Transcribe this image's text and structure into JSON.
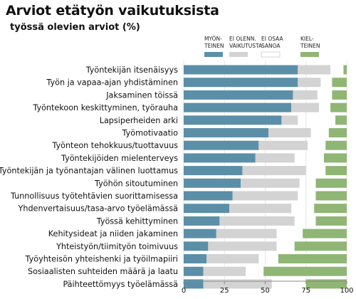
{
  "chart_data": {
    "type": "bar",
    "stacked": true,
    "orientation": "horizontal",
    "title": "Arviot etätyön vaikutuksista",
    "subtitle": "työssä olevien arviot (%)",
    "xlim": [
      0,
      100
    ],
    "xticks": [
      "0",
      "25",
      "50",
      "75",
      "100"
    ],
    "grid": true,
    "legend_position": "top-right",
    "categories": [
      "Työntekijän itsenäisyys",
      "Työn ja vapaa-ajan yhdistäminen",
      "Jaksaminen töissä",
      "Työntekoon keskittyminen, työrauha",
      "Lapsiperheiden arki",
      "Työmotivaatio",
      "Työnteon tehokkuus/tuottavuus",
      "Työntekijöiden mielenterveys",
      "Työntekijän ja työnantajan välinen luottamus",
      "Työhön sitoutuminen",
      "Tunnollisuus työtehtävien suorittamisessa",
      "Yhdenvertaisuus/tasa-arvo työelämässä",
      "Työssä kehittyminen",
      "Kehitysideat ja niiden jakaminen",
      "Yhteistyön/tiimityön toimivuus",
      "Työyhteisön yhteishenki ja työilmapiiri",
      "Sosiaalisten suhteiden määrä ja laatu",
      "Päihteettömyys työelämässä"
    ],
    "series": [
      {
        "name": "MYÖN-TEINEN",
        "color": "#5b8fa8",
        "values": [
          70,
          70,
          67,
          66,
          60,
          52,
          46,
          44,
          36,
          35,
          30,
          28,
          22,
          20,
          15,
          14,
          12,
          12
        ]
      },
      {
        "name": "EI OLENN. VAIKUTUSTA",
        "color": "#d3d3d3",
        "values": [
          20,
          14,
          15,
          17,
          10,
          26,
          30,
          24,
          39,
          36,
          40,
          38,
          46,
          37,
          42,
          32,
          26,
          42
        ]
      },
      {
        "name": "EI OSAA SANOA",
        "color": "#ffffff",
        "values": [
          8,
          7,
          9,
          7,
          23,
          11,
          11,
          18,
          12,
          10,
          11,
          14,
          13,
          16,
          11,
          12,
          11,
          21
        ]
      },
      {
        "name": "KIEL-TEINEN",
        "color": "#8fb674",
        "values": [
          2,
          9,
          9,
          10,
          7,
          11,
          13,
          14,
          13,
          19,
          19,
          20,
          19,
          27,
          32,
          42,
          51,
          25
        ]
      }
    ]
  }
}
